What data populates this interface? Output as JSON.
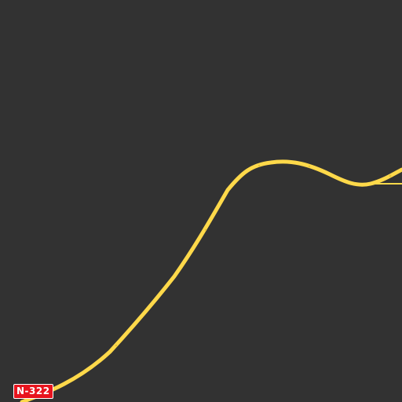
{
  "map": {
    "background_color": "#323232",
    "road": {
      "ref": "N-322",
      "color": "#ffd94a",
      "shield_color": "#e8141e",
      "shield_text_color": "#ffffff"
    }
  }
}
